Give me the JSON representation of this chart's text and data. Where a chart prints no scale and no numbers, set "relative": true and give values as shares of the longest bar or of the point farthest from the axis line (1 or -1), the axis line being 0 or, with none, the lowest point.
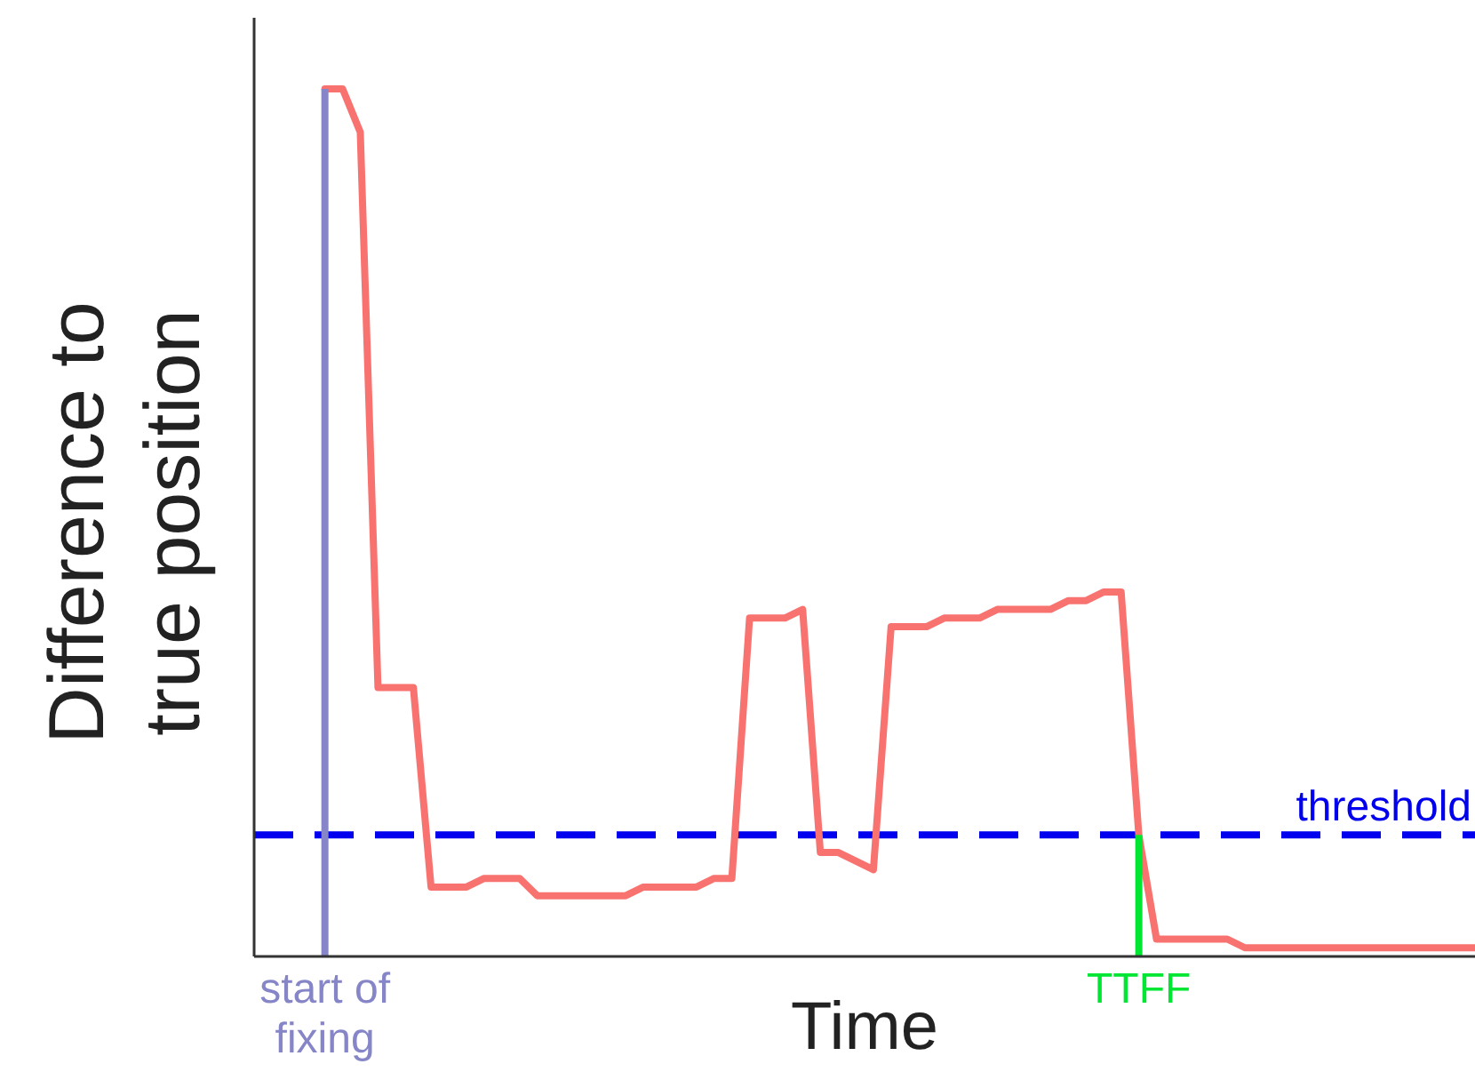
{
  "chart_data": {
    "type": "line",
    "relative": true,
    "xlabel": "Time",
    "ylabel": "Difference to true position",
    "line_style": "solid",
    "categories": [
      null,
      null,
      null,
      null,
      "start of fixing",
      null,
      null,
      null,
      null,
      null,
      null,
      null,
      null,
      null,
      null,
      null,
      null,
      null,
      null,
      null,
      null,
      null,
      null,
      null,
      null,
      null,
      null,
      null,
      null,
      null,
      null,
      null,
      null,
      null,
      null,
      null,
      null,
      null,
      null,
      null,
      null,
      null,
      null,
      null,
      null,
      null,
      null,
      null,
      null,
      null,
      "TTFF",
      null,
      null,
      null,
      null,
      null,
      null,
      null,
      null,
      null,
      null,
      null,
      null,
      null,
      null,
      null,
      null,
      null,
      null,
      null
    ],
    "series": [
      {
        "color": "#f87370",
        "values": [
          null,
          null,
          null,
          null,
          1.0,
          1.0,
          0.95,
          0.31,
          0.31,
          0.31,
          0.08,
          0.08,
          0.08,
          0.09,
          0.09,
          0.09,
          0.07,
          0.07,
          0.07,
          0.07,
          0.07,
          0.07,
          0.08,
          0.08,
          0.08,
          0.08,
          0.09,
          0.09,
          0.39,
          0.39,
          0.39,
          0.4,
          0.12,
          0.12,
          0.11,
          0.1,
          0.38,
          0.38,
          0.38,
          0.39,
          0.39,
          0.39,
          0.4,
          0.4,
          0.4,
          0.4,
          0.41,
          0.41,
          0.42,
          0.42,
          0.14,
          0.02,
          0.02,
          0.02,
          0.02,
          0.02,
          0.01,
          0.01,
          0.01,
          0.01,
          0.01,
          0.01,
          0.01,
          0.01,
          0.01,
          0.01,
          0.01,
          0.01,
          0.01,
          0.01
        ]
      }
    ],
    "ref_lines": [
      {
        "axis": "y",
        "value": 0.14,
        "label": "threshold",
        "color": "#0000ee",
        "line_style": "dashed"
      },
      {
        "axis": "x",
        "value": "start of fixing",
        "color": "#8585c8",
        "line_style": "solid"
      },
      {
        "axis": "x",
        "value": "TTFF",
        "color": "#00e633",
        "line_style": "solid"
      }
    ]
  }
}
